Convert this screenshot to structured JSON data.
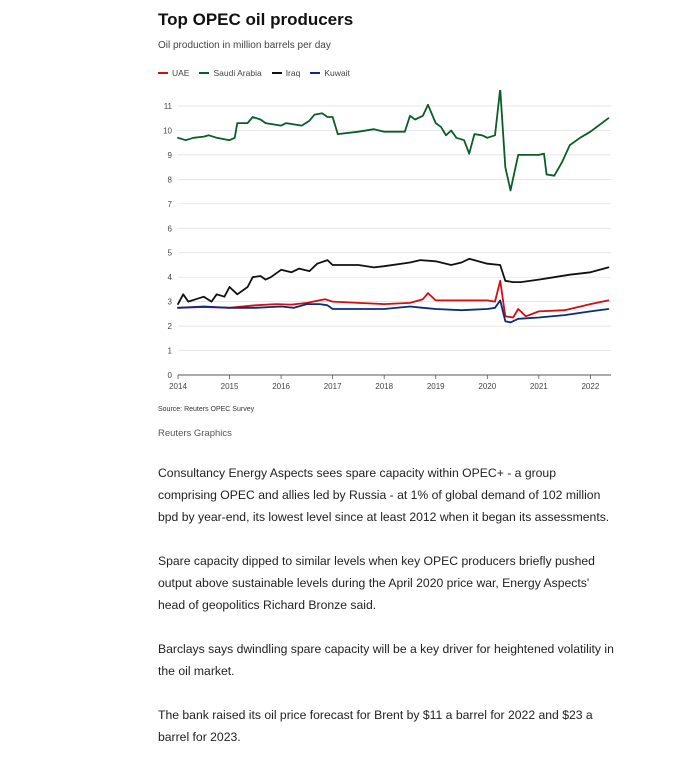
{
  "header": {
    "title": "Top OPEC oil producers",
    "subtitle": "Oil production in million barrels per day"
  },
  "footer": {
    "source": "Source: Reuters OPEC Survey",
    "credit": "Reuters Graphics"
  },
  "article": {
    "paragraphs": [
      "Consultancy Energy Aspects sees spare capacity within OPEC+ - a group comprising OPEC and allies led by Russia - at 1% of global demand of 102 million bpd by year-end, its lowest level since at least 2012 when it began its assessments.",
      "Spare capacity dipped to similar levels when key OPEC producers briefly pushed output above sustainable levels during the April 2020 price war, Energy Aspects' head of geopolitics Richard Bronze said.",
      "Barclays says dwindling spare capacity will be a key driver for heightened volatility in the oil market.",
      "The bank raised its oil price forecast for Brent by $11 a barrel for 2022 and $23 a barrel for 2023."
    ]
  },
  "chart_data": {
    "type": "line",
    "title": "Top OPEC oil producers",
    "subtitle": "Oil production in million barrels per day",
    "xlabel": "",
    "ylabel": "",
    "xlim": [
      2014,
      2022.4
    ],
    "ylim": [
      0,
      11.5
    ],
    "x_ticks": [
      "2014",
      "2015",
      "2016",
      "2017",
      "2018",
      "2019",
      "2020",
      "2021",
      "2022"
    ],
    "y_ticks": [
      "0",
      "1",
      "2",
      "3",
      "4",
      "5",
      "6",
      "7",
      "8",
      "9",
      "10",
      "11"
    ],
    "grid": "horizontal",
    "legend_position": "top-left",
    "series": [
      {
        "name": "UAE",
        "color": "#d40d12",
        "points": [
          [
            2014,
            2.75
          ],
          [
            2014.5,
            2.78
          ],
          [
            2015,
            2.75
          ],
          [
            2015.5,
            2.85
          ],
          [
            2015.9,
            2.9
          ],
          [
            2016.2,
            2.88
          ],
          [
            2016.5,
            2.95
          ],
          [
            2016.85,
            3.1
          ],
          [
            2017,
            3.0
          ],
          [
            2017.5,
            2.95
          ],
          [
            2018,
            2.9
          ],
          [
            2018.5,
            2.95
          ],
          [
            2018.75,
            3.1
          ],
          [
            2018.85,
            3.35
          ],
          [
            2019,
            3.05
          ],
          [
            2019.5,
            3.05
          ],
          [
            2020,
            3.05
          ],
          [
            2020.15,
            3.0
          ],
          [
            2020.25,
            3.85
          ],
          [
            2020.35,
            2.4
          ],
          [
            2020.5,
            2.35
          ],
          [
            2020.6,
            2.7
          ],
          [
            2020.75,
            2.4
          ],
          [
            2021,
            2.6
          ],
          [
            2021.5,
            2.65
          ],
          [
            2022,
            2.9
          ],
          [
            2022.35,
            3.05
          ]
        ]
      },
      {
        "name": "Saudi Arabia",
        "color": "#0c5c27",
        "points": [
          [
            2014,
            9.7
          ],
          [
            2014.15,
            9.6
          ],
          [
            2014.3,
            9.7
          ],
          [
            2014.5,
            9.75
          ],
          [
            2014.6,
            9.8
          ],
          [
            2014.75,
            9.7
          ],
          [
            2015,
            9.6
          ],
          [
            2015.1,
            9.7
          ],
          [
            2015.15,
            10.3
          ],
          [
            2015.35,
            10.3
          ],
          [
            2015.45,
            10.55
          ],
          [
            2015.6,
            10.45
          ],
          [
            2015.7,
            10.3
          ],
          [
            2016,
            10.2
          ],
          [
            2016.1,
            10.3
          ],
          [
            2016.4,
            10.2
          ],
          [
            2016.55,
            10.4
          ],
          [
            2016.65,
            10.65
          ],
          [
            2016.8,
            10.7
          ],
          [
            2016.9,
            10.55
          ],
          [
            2017,
            10.55
          ],
          [
            2017.1,
            9.85
          ],
          [
            2017.5,
            9.95
          ],
          [
            2017.8,
            10.05
          ],
          [
            2018,
            9.95
          ],
          [
            2018.4,
            9.95
          ],
          [
            2018.5,
            10.6
          ],
          [
            2018.6,
            10.45
          ],
          [
            2018.75,
            10.6
          ],
          [
            2018.85,
            11.05
          ],
          [
            2019,
            10.3
          ],
          [
            2019.1,
            10.15
          ],
          [
            2019.2,
            9.8
          ],
          [
            2019.3,
            10.0
          ],
          [
            2019.4,
            9.7
          ],
          [
            2019.55,
            9.6
          ],
          [
            2019.65,
            9.05
          ],
          [
            2019.75,
            9.85
          ],
          [
            2019.9,
            9.8
          ],
          [
            2020,
            9.7
          ],
          [
            2020.15,
            9.8
          ],
          [
            2020.25,
            11.7
          ],
          [
            2020.35,
            8.5
          ],
          [
            2020.45,
            7.55
          ],
          [
            2020.6,
            9.0
          ],
          [
            2020.75,
            9.0
          ],
          [
            2021,
            9.0
          ],
          [
            2021.1,
            9.05
          ],
          [
            2021.15,
            8.2
          ],
          [
            2021.3,
            8.15
          ],
          [
            2021.45,
            8.7
          ],
          [
            2021.6,
            9.4
          ],
          [
            2021.8,
            9.7
          ],
          [
            2022,
            9.95
          ],
          [
            2022.35,
            10.5
          ]
        ]
      },
      {
        "name": "Iraq",
        "color": "#111111",
        "points": [
          [
            2014,
            2.9
          ],
          [
            2014.1,
            3.3
          ],
          [
            2014.2,
            3.0
          ],
          [
            2014.35,
            3.1
          ],
          [
            2014.5,
            3.2
          ],
          [
            2014.65,
            3.0
          ],
          [
            2014.75,
            3.3
          ],
          [
            2014.9,
            3.2
          ],
          [
            2015,
            3.6
          ],
          [
            2015.15,
            3.3
          ],
          [
            2015.35,
            3.6
          ],
          [
            2015.45,
            4.0
          ],
          [
            2015.6,
            4.05
          ],
          [
            2015.7,
            3.9
          ],
          [
            2015.8,
            4.0
          ],
          [
            2016,
            4.3
          ],
          [
            2016.2,
            4.2
          ],
          [
            2016.35,
            4.35
          ],
          [
            2016.55,
            4.25
          ],
          [
            2016.7,
            4.55
          ],
          [
            2016.9,
            4.7
          ],
          [
            2017,
            4.5
          ],
          [
            2017.5,
            4.5
          ],
          [
            2017.8,
            4.4
          ],
          [
            2018,
            4.45
          ],
          [
            2018.5,
            4.6
          ],
          [
            2018.7,
            4.7
          ],
          [
            2019,
            4.65
          ],
          [
            2019.3,
            4.5
          ],
          [
            2019.5,
            4.6
          ],
          [
            2019.65,
            4.75
          ],
          [
            2020,
            4.55
          ],
          [
            2020.25,
            4.5
          ],
          [
            2020.35,
            3.85
          ],
          [
            2020.5,
            3.8
          ],
          [
            2020.65,
            3.8
          ],
          [
            2021,
            3.9
          ],
          [
            2021.3,
            4.0
          ],
          [
            2021.6,
            4.1
          ],
          [
            2022,
            4.2
          ],
          [
            2022.35,
            4.4
          ]
        ]
      },
      {
        "name": "Kuwait",
        "color": "#0a2c7a",
        "points": [
          [
            2014,
            2.75
          ],
          [
            2014.5,
            2.8
          ],
          [
            2015,
            2.75
          ],
          [
            2015.5,
            2.75
          ],
          [
            2016,
            2.8
          ],
          [
            2016.25,
            2.75
          ],
          [
            2016.5,
            2.9
          ],
          [
            2016.75,
            2.9
          ],
          [
            2016.9,
            2.85
          ],
          [
            2017,
            2.7
          ],
          [
            2017.5,
            2.7
          ],
          [
            2018,
            2.7
          ],
          [
            2018.5,
            2.8
          ],
          [
            2018.75,
            2.75
          ],
          [
            2019,
            2.7
          ],
          [
            2019.5,
            2.65
          ],
          [
            2020,
            2.7
          ],
          [
            2020.15,
            2.75
          ],
          [
            2020.25,
            3.05
          ],
          [
            2020.35,
            2.2
          ],
          [
            2020.45,
            2.15
          ],
          [
            2020.6,
            2.3
          ],
          [
            2021,
            2.35
          ],
          [
            2021.5,
            2.45
          ],
          [
            2022,
            2.6
          ],
          [
            2022.35,
            2.7
          ]
        ]
      }
    ]
  }
}
